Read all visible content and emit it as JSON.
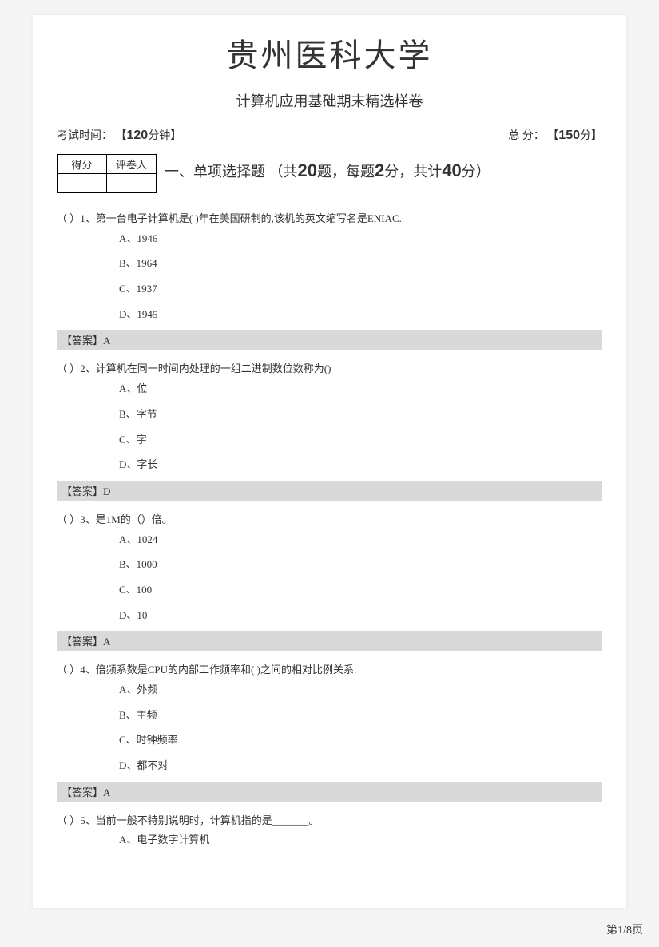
{
  "university": "贵州医科大学",
  "subtitle": "计算机应用基础期末精选样卷",
  "exam_time_label": "考试时间：",
  "exam_time_value": "120",
  "exam_time_unit": "分钟",
  "total_score_label": "总 分：",
  "total_score_value": "150",
  "total_score_unit": "分",
  "score_table": {
    "header1": "得分",
    "header2": "评卷人"
  },
  "section_header": {
    "prefix": "一、单项选择题 （共",
    "q_count": "20",
    "mid1": "题，每题",
    "per_point": "2",
    "mid2": "分，共计",
    "total": "40",
    "suffix": "分）"
  },
  "answer_label": "【答案】",
  "questions": [
    {
      "num": "1",
      "stem": "（     ）1、第一台电子计算机是(          )年在美国研制的,该机的英文缩写名是ENIAC.",
      "options": [
        "A、1946",
        "B、1964",
        "C、1937",
        "D、1945"
      ],
      "answer": "A"
    },
    {
      "num": "2",
      "stem": "（     ）2、计算机在同一时间内处理的一组二进制数位数称为()",
      "options": [
        "A、位",
        "B、字节",
        "C、字",
        "D、字长"
      ],
      "answer": "D"
    },
    {
      "num": "3",
      "stem": "（     ）3、是1M的（）倍。",
      "options": [
        "A、1024",
        "B、1000",
        "C、100",
        "D、10"
      ],
      "answer": "A"
    },
    {
      "num": "4",
      "stem": "（     ）4、倍频系数是CPU的内部工作频率和(        )之间的相对比例关系.",
      "options": [
        "A、外频",
        "B、主频",
        "C、时钟频率",
        "D、都不对"
      ],
      "answer": "A"
    },
    {
      "num": "5",
      "stem": "（     ）5、当前一般不特别说明时，计算机指的是_______。",
      "options": [
        "A、电子数字计算机"
      ],
      "answer": ""
    }
  ],
  "page_indicator": "第1/8页"
}
